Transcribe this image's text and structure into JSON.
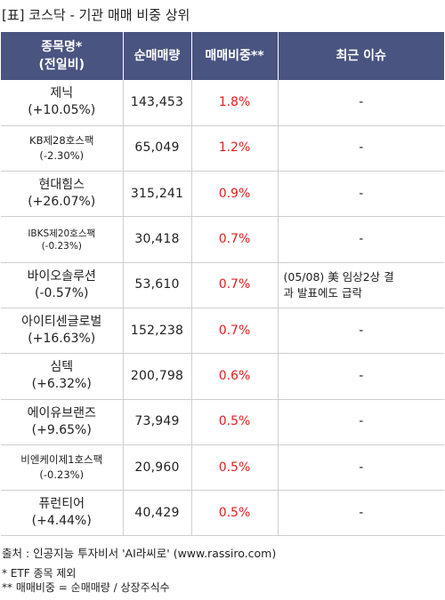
{
  "title": "[표] 코스닥 - 기관 매매 비중 상위",
  "headers": {
    "name_line1": "종목명*",
    "name_line2": "(전일비)",
    "volume": "순매매량",
    "ratio": "매매비중**",
    "issue": "최근 이슈"
  },
  "rows": [
    {
      "name": "제닉",
      "change": "(+10.05%)",
      "volume": "143,453",
      "ratio": "1.8%",
      "issue": "-"
    },
    {
      "name": "KB제28호스팩",
      "change": "(-2.30%)",
      "volume": "65,049",
      "ratio": "1.2%",
      "issue": "-"
    },
    {
      "name": "현대힘스",
      "change": "(+26.07%)",
      "volume": "315,241",
      "ratio": "0.9%",
      "issue": "-"
    },
    {
      "name": "IBKS제20호스팩",
      "change": "(-0.23%)",
      "volume": "30,418",
      "ratio": "0.7%",
      "issue": "-"
    },
    {
      "name": "바이오솔루션",
      "change": "(-0.57%)",
      "volume": "53,610",
      "ratio": "0.7%",
      "issue_line1": "(05/08) 美 임상2상 결",
      "issue_line2": "과 발표에도 급락"
    },
    {
      "name": "아이티센글로벌",
      "change": "(+16.63%)",
      "volume": "152,238",
      "ratio": "0.7%",
      "issue": "-"
    },
    {
      "name": "심텍",
      "change": "(+6.32%)",
      "volume": "200,798",
      "ratio": "0.6%",
      "issue": "-"
    },
    {
      "name": "에이유브랜즈",
      "change": "(+9.65%)",
      "volume": "73,949",
      "ratio": "0.5%",
      "issue": "-"
    },
    {
      "name": "비엔케이제1호스팩",
      "change": "(-0.23%)",
      "volume": "20,960",
      "ratio": "0.5%",
      "issue": "-"
    },
    {
      "name": "퓨런티어",
      "change": "(+4.44%)",
      "volume": "40,429",
      "ratio": "0.5%",
      "issue": "-"
    }
  ],
  "footer": {
    "source": "출처 : 인공지능 투자비서 'AI라씨로' (www.rassiro.com)",
    "note1": "* ETF 종목 제외",
    "note2": "** 매매비중 = 순매매량 / 상장주식수"
  },
  "colors": {
    "header_bg": "#4a5480",
    "ratio_text": "#e02020"
  }
}
